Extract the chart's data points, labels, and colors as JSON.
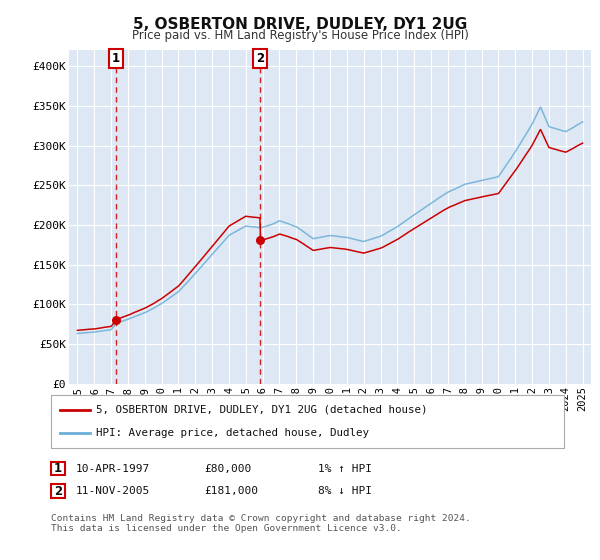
{
  "title": "5, OSBERTON DRIVE, DUDLEY, DY1 2UG",
  "subtitle": "Price paid vs. HM Land Registry's House Price Index (HPI)",
  "ylim": [
    0,
    420000
  ],
  "yticks": [
    0,
    50000,
    100000,
    150000,
    200000,
    250000,
    300000,
    350000,
    400000
  ],
  "ytick_labels": [
    "£0",
    "£50K",
    "£100K",
    "£150K",
    "£200K",
    "£250K",
    "£300K",
    "£350K",
    "£400K"
  ],
  "hpi_color": "#6baed6",
  "price_color": "#cc0000",
  "dashed_color": "#cc0000",
  "bg_color": "#dde8f4",
  "grid_color": "#ffffff",
  "transaction1_year": 1997.274,
  "transaction1_price": 80000,
  "transaction2_year": 2005.864,
  "transaction2_price": 181000,
  "legend_label1": "5, OSBERTON DRIVE, DUDLEY, DY1 2UG (detached house)",
  "legend_label2": "HPI: Average price, detached house, Dudley",
  "annotation1_date": "10-APR-1997",
  "annotation1_price": "£80,000",
  "annotation1_hpi": "1% ↑ HPI",
  "annotation2_date": "11-NOV-2005",
  "annotation2_price": "£181,000",
  "annotation2_hpi": "8% ↓ HPI",
  "footer": "Contains HM Land Registry data © Crown copyright and database right 2024.\nThis data is licensed under the Open Government Licence v3.0.",
  "hpi_anchors_x": [
    1995.0,
    1996.0,
    1997.0,
    1997.3,
    1998.0,
    1999.0,
    2000.0,
    2001.0,
    2002.0,
    2003.0,
    2004.0,
    2005.0,
    2005.9,
    2006.5,
    2007.0,
    2008.0,
    2009.0,
    2010.0,
    2011.0,
    2012.0,
    2013.0,
    2014.0,
    2015.0,
    2016.0,
    2017.0,
    2018.0,
    2019.0,
    2020.0,
    2021.0,
    2022.0,
    2022.5,
    2023.0,
    2024.0,
    2025.0
  ],
  "hpi_anchors_y": [
    62000,
    64000,
    67000,
    75000,
    80000,
    88000,
    100000,
    115000,
    138000,
    162000,
    186000,
    198000,
    196000,
    200000,
    205000,
    198000,
    183000,
    187000,
    185000,
    180000,
    186000,
    198000,
    213000,
    228000,
    242000,
    252000,
    257000,
    262000,
    293000,
    328000,
    350000,
    325000,
    318000,
    330000
  ]
}
